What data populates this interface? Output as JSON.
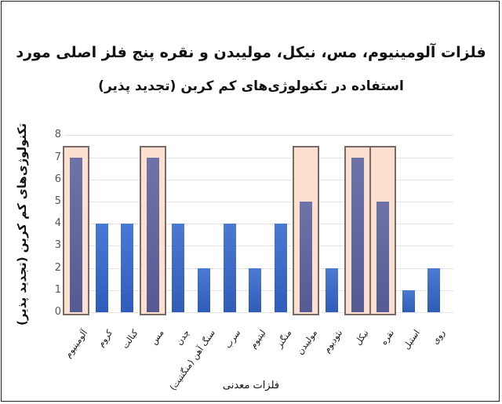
{
  "chart_data": {
    "type": "bar",
    "title": "فلزات آلومینیوم، مس، نیکل، مولیبدن و نقره پنج فلز اصلی مورد",
    "subtitle": "استفاده در تکنولوژی‌های کم کربن (تجدید پذیر)",
    "xlabel": "فلزات معدنی",
    "ylabel": "تکنولوژی‌های کم کربن (تجدید پذیر)",
    "ylim": [
      0,
      8
    ],
    "yticks": [
      "0",
      "1",
      "2",
      "3",
      "4",
      "5",
      "6",
      "7",
      "8"
    ],
    "grid": true,
    "categories": [
      "آلومینیوم",
      "کروم",
      "کبالت",
      "مس",
      "چدن",
      "سنگ آهن (منگنتیت)",
      "سرب",
      "لیتیوم",
      "منگنز",
      "مولیبدن",
      "نئودیوم",
      "نیکل",
      "نقره",
      "استیل",
      "روی"
    ],
    "values": [
      7,
      4,
      4,
      7,
      4,
      2,
      4,
      2,
      4,
      5,
      2,
      7,
      5,
      1,
      2
    ],
    "highlighted": [
      "آلومینیوم",
      "مس",
      "مولیبدن",
      "نیکل",
      "نقره"
    ],
    "colors": {
      "bar": "#3a67c4",
      "highlight_bar": "#626699",
      "highlight_box": "#fde0d0",
      "highlight_border": "#7a6a66"
    }
  }
}
